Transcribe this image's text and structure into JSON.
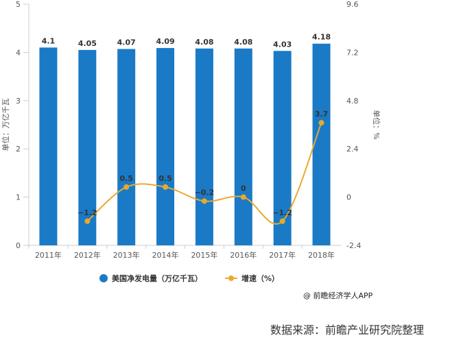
{
  "chart_data": {
    "type": "bar+line",
    "categories": [
      "2011年",
      "2012年",
      "2013年",
      "2014年",
      "2015年",
      "2016年",
      "2017年",
      "2018年"
    ],
    "series": [
      {
        "name": "美国净发电量（万亿千瓦）",
        "type": "bar",
        "axis": "left",
        "color": "#1b7ac6",
        "values": [
          4.1,
          4.05,
          4.07,
          4.09,
          4.08,
          4.08,
          4.03,
          4.18
        ]
      },
      {
        "name": "增速（%）",
        "type": "line",
        "axis": "right",
        "color": "#e9a92f",
        "values": [
          null,
          -1.2,
          0.5,
          0.5,
          -0.2,
          0,
          -1.2,
          3.7
        ]
      }
    ],
    "ylabel_left": "单位：万亿千瓦",
    "ylabel_right": "单位：%",
    "ylim_left": [
      0,
      5
    ],
    "yticks_left": [
      0,
      1,
      2,
      3,
      4,
      5
    ],
    "ylim_right": [
      -2.4,
      9.6
    ],
    "yticks_right": [
      -2.4,
      0,
      2.4,
      4.8,
      7.2,
      9.6
    ],
    "legend_position": "bottom",
    "grid": false
  },
  "legend": {
    "bar_label": "美国净发电量（万亿千瓦）",
    "line_label": "增速（%）"
  },
  "credit": "@ 前瞻经济学人APP",
  "source": "数据来源：前瞻产业研究院整理"
}
